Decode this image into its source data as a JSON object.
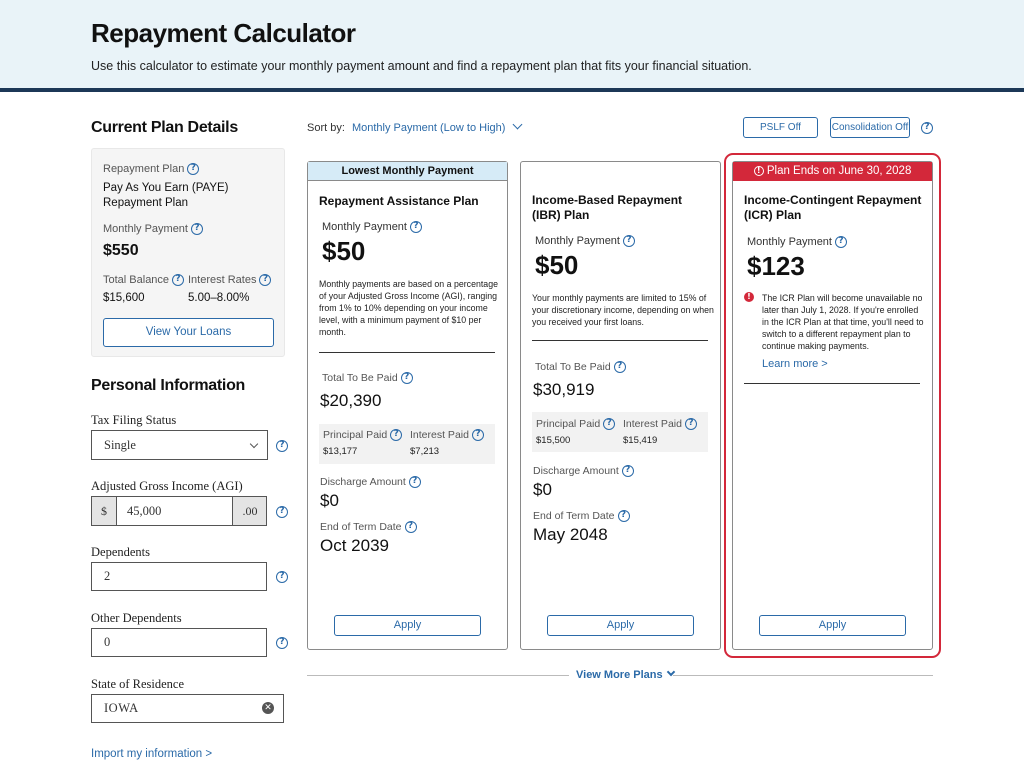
{
  "header": {
    "title": "Repayment Calculator",
    "subtitle": "Use this calculator to estimate your monthly payment amount and find a repayment plan that fits your financial situation."
  },
  "current_plan": {
    "section_title": "Current Plan Details",
    "repayment_plan_label": "Repayment Plan",
    "repayment_plan_value": "Pay As You Earn (PAYE) Repayment Plan",
    "monthly_payment_label": "Monthly Payment",
    "monthly_payment_value": "$550",
    "total_balance_label": "Total Balance",
    "total_balance_value": "$15,600",
    "interest_rates_label": "Interest Rates",
    "interest_rates_value": "5.00–8.00%",
    "view_loans_button": "View Your Loans"
  },
  "personal_info": {
    "section_title": "Personal Information",
    "tax_filing_label": "Tax Filing Status",
    "tax_filing_value": "Single",
    "agi_label": "Adjusted Gross Income (AGI)",
    "agi_prefix": "$",
    "agi_value": "45,000",
    "agi_suffix": ".00",
    "dependents_label": "Dependents",
    "dependents_value": "2",
    "other_dependents_label": "Other Dependents",
    "other_dependents_value": "0",
    "state_label": "State of Residence",
    "state_value": "IOWA",
    "import_link": "Import my information >"
  },
  "toolbar": {
    "sort_label": "Sort by:",
    "sort_value": "Monthly Payment (Low to High)",
    "pslf_button": "PSLF Off",
    "consolidation_button": "Consolidation Off"
  },
  "cards": [
    {
      "banner": "Lowest Monthly Payment",
      "title": "Repayment Assistance Plan",
      "monthly_payment_label": "Monthly Payment",
      "monthly_payment": "$50",
      "description": "Monthly payments are based on a percentage of your Adjusted Gross Income (AGI), ranging from 1% to 10% depending on your income level, with a minimum payment of $10 per month.",
      "total_label": "Total To Be Paid",
      "total_value": "$20,390",
      "principal_label": "Principal Paid",
      "principal_value": "$13,177",
      "interest_label": "Interest Paid",
      "interest_value": "$7,213",
      "discharge_label": "Discharge Amount",
      "discharge_value": "$0",
      "end_label": "End of Term Date",
      "end_value": "Oct 2039",
      "apply": "Apply"
    },
    {
      "title": "Income-Based Repayment (IBR) Plan",
      "monthly_payment_label": "Monthly Payment",
      "monthly_payment": "$50",
      "description": "Your monthly payments are limited to 15% of your discretionary income, depending on when you received your first loans.",
      "total_label": "Total To Be Paid",
      "total_value": "$30,919",
      "principal_label": "Principal Paid",
      "principal_value": "$15,500",
      "interest_label": "Interest Paid",
      "interest_value": "$15,419",
      "discharge_label": "Discharge Amount",
      "discharge_value": "$0",
      "end_label": "End of Term Date",
      "end_value": "May 2048",
      "apply": "Apply"
    },
    {
      "banner": "Plan Ends on June 30, 2028",
      "title": "Income-Contingent Repayment (ICR) Plan",
      "monthly_payment_label": "Monthly Payment",
      "monthly_payment": "$123",
      "warning": "The ICR Plan will become unavailable no later than July 1, 2028. If you're enrolled in the ICR Plan at that time, you'll need to switch to a different repayment plan to continue making payments.",
      "learn_more": "Learn more >",
      "apply": "Apply"
    }
  ],
  "view_more": "View More Plans",
  "colors": {
    "header_bg": "#e9f3f8",
    "header_border": "#1c3857",
    "link_blue": "#2b6aa8",
    "alert_red": "#d3283a",
    "lowest_banner_bg": "#d6ebf7"
  }
}
